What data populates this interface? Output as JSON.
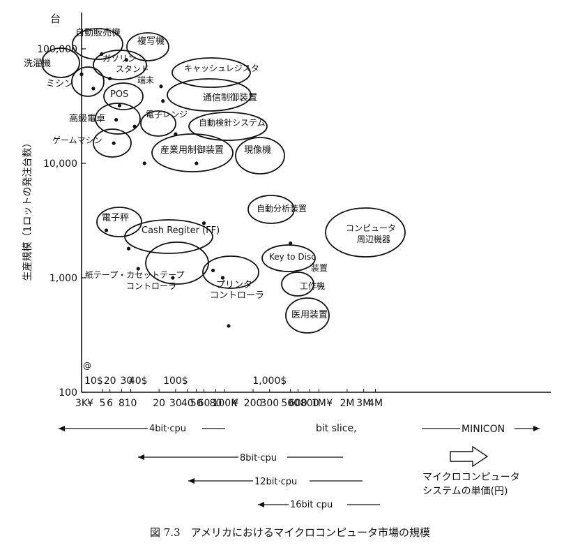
{
  "caption": "図 7.3　アメリカにおけるマイクロコンピュータ市場の規模",
  "chart_data": {
    "type": "scatter",
    "title": "",
    "ylabel": "生産規模（1ロットの発注台数）",
    "yunit": "台",
    "xunit_label": "マイクロコンピュータ\nシステムの単価(円)",
    "xscale": "log",
    "yscale": "log",
    "xlim": [
      3000,
      4000000
    ],
    "ylim": [
      100,
      200000
    ],
    "grid": false,
    "yticks": [
      {
        "value": 100,
        "label": "100"
      },
      {
        "value": 1000,
        "label": "1,000"
      },
      {
        "value": 10000,
        "label": "10,000"
      },
      {
        "value": 100000,
        "label": "100,000"
      }
    ],
    "yen_ticks": [
      {
        "value": 3000,
        "label": "3K"
      },
      {
        "value": 3700,
        "label": "¥"
      },
      {
        "value": 5000,
        "label": "5"
      },
      {
        "value": 6000,
        "label": "6"
      },
      {
        "value": 8000,
        "label": "8"
      },
      {
        "value": 10000,
        "label": "10"
      },
      {
        "value": 20000,
        "label": "20"
      },
      {
        "value": 30000,
        "label": "30"
      },
      {
        "value": 40000,
        "label": "40"
      },
      {
        "value": 50000,
        "label": "50"
      },
      {
        "value": 60000,
        "label": "60"
      },
      {
        "value": 80000,
        "label": "80"
      },
      {
        "value": 100000,
        "label": "100K"
      },
      {
        "value": 130000,
        "label": "¥"
      },
      {
        "value": 200000,
        "label": "200"
      },
      {
        "value": 300000,
        "label": "300"
      },
      {
        "value": 500000,
        "label": "500"
      },
      {
        "value": 600000,
        "label": "600"
      },
      {
        "value": 800000,
        "label": "800"
      },
      {
        "value": 1000000,
        "label": "1M"
      },
      {
        "value": 1300000,
        "label": "¥"
      },
      {
        "value": 2000000,
        "label": "2M"
      },
      {
        "value": 3000000,
        "label": "3M"
      },
      {
        "value": 4000000,
        "label": "4M"
      }
    ],
    "dollar_ticks": [
      {
        "value": 3000,
        "label": "10$"
      },
      {
        "value": 6000,
        "label": "20"
      },
      {
        "value": 9000,
        "label": "30"
      },
      {
        "value": 12000,
        "label": "40$"
      },
      {
        "value": 30000,
        "label": "100$"
      },
      {
        "value": 300000,
        "label": "1,000$"
      }
    ],
    "dollar_marker": "@",
    "points": [
      {
        "label": "自動販売機",
        "x": 4900,
        "y": 90000
      },
      {
        "label": "複写機",
        "x": 9000,
        "y": 80000
      },
      {
        "label": "洗濯機",
        "x": 3000,
        "y": 60000
      },
      {
        "label": "ガソリン\nスタンド\n端末",
        "x": 6000,
        "y": 55000
      },
      {
        "label": "ミシン",
        "x": 4000,
        "y": 45000
      },
      {
        "label": "キャッシュレジスタ",
        "x": 21000,
        "y": 47000
      },
      {
        "label": "POS",
        "x": 7600,
        "y": 32000
      },
      {
        "label": "通信制御装置",
        "x": 22000,
        "y": 35000
      },
      {
        "label": "高級電卓",
        "x": 7000,
        "y": 24000
      },
      {
        "label": "電子レンジ",
        "x": 11000,
        "y": 21000
      },
      {
        "label": "自動検針システム",
        "x": 30000,
        "y": 18000
      },
      {
        "label": "ゲームマシン",
        "x": 6600,
        "y": 15000
      },
      {
        "label": "産業用制御装置",
        "x": 14000,
        "y": 10000
      },
      {
        "label": "現像機",
        "x": 50000,
        "y": 10000
      },
      {
        "label": "自動分析装置",
        "x": 60000,
        "y": 3000
      },
      {
        "label": "電子秤",
        "x": 5500,
        "y": 2600
      },
      {
        "label": "Cash Regiter (FF)",
        "x": 9500,
        "y": 1800
      },
      {
        "label": "コンピュータ\n周辺機器",
        "x": 500000,
        "y": 2000
      },
      {
        "label": "紙テープ・カセットテープ\nコントローラ",
        "x": 12000,
        "y": 1200
      },
      {
        "label": "Key to Disc\n装置",
        "x": 75000,
        "y": 1160
      },
      {
        "label": "プリンタ\nコントローラ",
        "x": 28000,
        "y": 1000
      },
      {
        "label": "工作機",
        "x": 95000,
        "y": 1000
      },
      {
        "label": "医用装置",
        "x": 110000,
        "y": 380
      }
    ],
    "ranges": [
      {
        "label": "4bit·cpu",
        "x_from": 3000,
        "x_to": 30000
      },
      {
        "label": "bit slice,",
        "x_from": 110000,
        "x_to": 350000
      },
      {
        "label": "MINICON",
        "x_from": 800000,
        "x_to": 3000000
      },
      {
        "label": "8bit·cpu",
        "x_from": 8000,
        "x_to": 200000
      },
      {
        "label": "12bit·cpu",
        "x_from": 20000,
        "x_to": 300000
      },
      {
        "label": "16bit cpu",
        "x_from": 50000,
        "x_to": 400000
      }
    ]
  }
}
